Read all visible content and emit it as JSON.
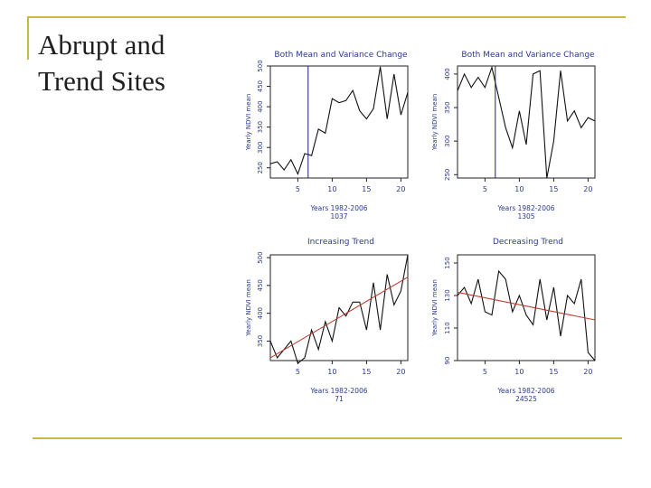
{
  "slide": {
    "title_line1": "Abrupt and",
    "title_line2": "Trend Sites"
  },
  "colors": {
    "accent_rule": "#c9b94a",
    "series_line": "#111111",
    "regime_line": "#1c1c7a",
    "trend_line": "#c0392b"
  },
  "chart_data": [
    {
      "type": "line",
      "title": "Both Mean and Variance Change",
      "xlabel": "Years 1982-2006",
      "sublabel": "1037",
      "ylabel": "Yearly NDVI mean",
      "xlim": [
        1,
        21
      ],
      "ylim": [
        225,
        500
      ],
      "xticks": [
        5,
        10,
        15,
        20
      ],
      "yticks": [
        250,
        300,
        350,
        400,
        450,
        500
      ],
      "change_point_x": 6.5,
      "x": [
        1,
        2,
        3,
        4,
        5,
        6,
        7,
        8,
        9,
        10,
        11,
        12,
        13,
        14,
        15,
        16,
        17,
        18,
        19,
        20,
        21
      ],
      "values": [
        260,
        265,
        245,
        270,
        235,
        285,
        280,
        345,
        335,
        420,
        410,
        415,
        440,
        390,
        370,
        395,
        498,
        370,
        480,
        380,
        435
      ]
    },
    {
      "type": "line",
      "title": "Both Mean and Variance Change",
      "xlabel": "Years 1982-2006",
      "sublabel": "1305",
      "ylabel": "Yearly NDVI mean",
      "xlim": [
        1,
        21
      ],
      "ylim": [
        245,
        412
      ],
      "xticks": [
        5,
        10,
        15,
        20
      ],
      "yticks": [
        250,
        300,
        350,
        400
      ],
      "change_point_x": 6.5,
      "x": [
        1,
        2,
        3,
        4,
        5,
        6,
        7,
        8,
        9,
        10,
        11,
        12,
        13,
        14,
        15,
        16,
        17,
        18,
        19,
        20,
        21
      ],
      "values": [
        375,
        400,
        380,
        395,
        380,
        410,
        365,
        320,
        290,
        345,
        295,
        400,
        405,
        245,
        300,
        405,
        330,
        345,
        320,
        335,
        330
      ]
    },
    {
      "type": "line",
      "title": "Increasing Trend",
      "xlabel": "Years 1982-2006",
      "sublabel": "71",
      "ylabel": "Yearly NDVI mean",
      "xlim": [
        1,
        21
      ],
      "ylim": [
        315,
        505
      ],
      "xticks": [
        5,
        10,
        15,
        20
      ],
      "yticks": [
        350,
        400,
        450,
        500
      ],
      "trend": [
        [
          1,
          320
        ],
        [
          21,
          465
        ]
      ],
      "x": [
        1,
        2,
        3,
        4,
        5,
        6,
        7,
        8,
        9,
        10,
        11,
        12,
        13,
        14,
        15,
        16,
        17,
        18,
        19,
        20,
        21
      ],
      "values": [
        350,
        320,
        335,
        350,
        310,
        320,
        370,
        335,
        385,
        350,
        410,
        395,
        420,
        420,
        370,
        455,
        370,
        470,
        415,
        440,
        505
      ]
    },
    {
      "type": "line",
      "title": "Decreasing Trend",
      "xlabel": "Years 1982-2006",
      "sublabel": "24525",
      "ylabel": "Yearly NDVI mean",
      "xlim": [
        1,
        21
      ],
      "ylim": [
        90,
        155
      ],
      "xticks": [
        5,
        10,
        15,
        20
      ],
      "yticks": [
        90,
        110,
        130,
        150
      ],
      "trend": [
        [
          1,
          132
        ],
        [
          21,
          115
        ]
      ],
      "x": [
        1,
        2,
        3,
        4,
        5,
        6,
        7,
        8,
        9,
        10,
        11,
        12,
        13,
        14,
        15,
        16,
        17,
        18,
        19,
        20,
        21
      ],
      "values": [
        130,
        135,
        125,
        140,
        120,
        118,
        145,
        140,
        120,
        130,
        118,
        112,
        140,
        115,
        135,
        105,
        130,
        125,
        140,
        95,
        90
      ]
    }
  ]
}
